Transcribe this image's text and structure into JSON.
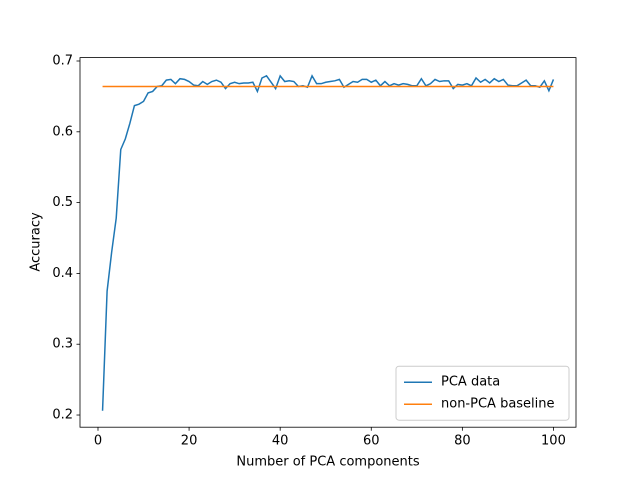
{
  "chart_data": {
    "type": "line",
    "xlabel": "Number of PCA components",
    "ylabel": "Accuracy",
    "x": [
      1,
      2,
      3,
      4,
      5,
      6,
      7,
      8,
      9,
      10,
      11,
      12,
      13,
      14,
      15,
      16,
      17,
      18,
      19,
      20,
      21,
      22,
      23,
      24,
      25,
      26,
      27,
      28,
      29,
      30,
      31,
      32,
      33,
      34,
      35,
      36,
      37,
      38,
      39,
      40,
      41,
      42,
      43,
      44,
      45,
      46,
      47,
      48,
      49,
      50,
      51,
      52,
      53,
      54,
      55,
      56,
      57,
      58,
      59,
      60,
      61,
      62,
      63,
      64,
      65,
      66,
      67,
      68,
      69,
      70,
      71,
      72,
      73,
      74,
      75,
      76,
      77,
      78,
      79,
      80,
      81,
      82,
      83,
      84,
      85,
      86,
      87,
      88,
      89,
      90,
      91,
      92,
      93,
      94,
      95,
      96,
      97,
      98,
      99,
      100
    ],
    "series": [
      {
        "name": "PCA data",
        "color": "#1f77b4",
        "values": [
          0.206,
          0.375,
          0.43,
          0.478,
          0.575,
          0.59,
          0.612,
          0.637,
          0.639,
          0.643,
          0.655,
          0.657,
          0.664,
          0.665,
          0.673,
          0.674,
          0.668,
          0.675,
          0.674,
          0.671,
          0.666,
          0.665,
          0.671,
          0.667,
          0.671,
          0.673,
          0.67,
          0.661,
          0.668,
          0.67,
          0.668,
          0.669,
          0.669,
          0.67,
          0.657,
          0.676,
          0.679,
          0.67,
          0.661,
          0.679,
          0.671,
          0.672,
          0.671,
          0.664,
          0.665,
          0.663,
          0.679,
          0.668,
          0.668,
          0.67,
          0.671,
          0.672,
          0.674,
          0.663,
          0.667,
          0.671,
          0.67,
          0.674,
          0.674,
          0.67,
          0.673,
          0.665,
          0.671,
          0.665,
          0.668,
          0.666,
          0.668,
          0.667,
          0.665,
          0.665,
          0.675,
          0.665,
          0.668,
          0.674,
          0.671,
          0.672,
          0.672,
          0.661,
          0.667,
          0.666,
          0.668,
          0.665,
          0.676,
          0.67,
          0.674,
          0.669,
          0.675,
          0.671,
          0.674,
          0.666,
          0.665,
          0.665,
          0.669,
          0.673,
          0.665,
          0.665,
          0.663,
          0.672,
          0.658,
          0.674
        ]
      },
      {
        "name": "non-PCA baseline",
        "color": "#ff7f0e",
        "values": [
          0.664,
          0.664,
          0.664,
          0.664,
          0.664,
          0.664,
          0.664,
          0.664,
          0.664,
          0.664,
          0.664,
          0.664,
          0.664,
          0.664,
          0.664,
          0.664,
          0.664,
          0.664,
          0.664,
          0.664,
          0.664,
          0.664,
          0.664,
          0.664,
          0.664,
          0.664,
          0.664,
          0.664,
          0.664,
          0.664,
          0.664,
          0.664,
          0.664,
          0.664,
          0.664,
          0.664,
          0.664,
          0.664,
          0.664,
          0.664,
          0.664,
          0.664,
          0.664,
          0.664,
          0.664,
          0.664,
          0.664,
          0.664,
          0.664,
          0.664,
          0.664,
          0.664,
          0.664,
          0.664,
          0.664,
          0.664,
          0.664,
          0.664,
          0.664,
          0.664,
          0.664,
          0.664,
          0.664,
          0.664,
          0.664,
          0.664,
          0.664,
          0.664,
          0.664,
          0.664,
          0.664,
          0.664,
          0.664,
          0.664,
          0.664,
          0.664,
          0.664,
          0.664,
          0.664,
          0.664,
          0.664,
          0.664,
          0.664,
          0.664,
          0.664,
          0.664,
          0.664,
          0.664,
          0.664,
          0.664,
          0.664,
          0.664,
          0.664,
          0.664,
          0.664,
          0.664,
          0.664,
          0.664,
          0.664,
          0.664
        ]
      }
    ],
    "xlim": [
      -3.95,
      104.95
    ],
    "xticks": [
      0,
      20,
      40,
      60,
      80,
      100
    ],
    "ylim": [
      0.1828,
      0.7048
    ],
    "yticks": [
      0.2,
      0.3,
      0.4,
      0.5,
      0.6,
      0.7
    ],
    "grid": false,
    "legend": "lower right"
  }
}
